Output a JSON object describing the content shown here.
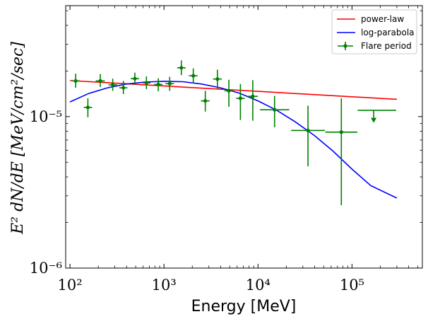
{
  "chart_data": {
    "type": "scatter",
    "title": "",
    "xlabel": "Energy [MeV]",
    "ylabel": "E² dN/dE [MeV/cm²/sec]",
    "xscale": "log",
    "yscale": "log",
    "xlim": [
      90,
      560000
    ],
    "ylim": [
      1e-06,
      5.4e-05
    ],
    "xticks": [
      100,
      1000,
      10000,
      100000
    ],
    "xtick_labels": [
      "10²",
      "10³",
      "10⁴",
      "10⁵"
    ],
    "yticks": [
      1e-06,
      1e-05
    ],
    "ytick_labels": [
      "10⁻⁶",
      "10⁻⁵"
    ],
    "grid": false,
    "legend_position": "top-right",
    "legend": [
      "power-law",
      "log-parabola",
      "Flare period"
    ],
    "colors": {
      "power_law": "#ff0000",
      "log_parabola": "#0000ff",
      "flare": "#008000",
      "frame": "#000000"
    },
    "series": [
      {
        "name": "power-law",
        "kind": "line",
        "x": [
          100,
          300000
        ],
        "y": [
          1.73e-05,
          1.3e-05
        ]
      },
      {
        "name": "log-parabola",
        "kind": "curve",
        "x": [
          100,
          158,
          251,
          398,
          631,
          1000,
          1585,
          2512,
          3981,
          6310,
          10000,
          15849,
          25119,
          39811,
          63096,
          100000,
          158489,
          300000
        ],
        "y": [
          1.25e-05,
          1.42e-05,
          1.55e-05,
          1.64e-05,
          1.69e-05,
          1.71e-05,
          1.7e-05,
          1.64e-05,
          1.55e-05,
          1.43e-05,
          1.27e-05,
          1.1e-05,
          9.2e-06,
          7.5e-06,
          5.9e-06,
          4.5e-06,
          3.5e-06,
          2.9e-06
        ]
      },
      {
        "name": "Flare period",
        "kind": "errorbar",
        "points": [
          {
            "x": 115,
            "xlo": 105,
            "xhi": 127,
            "y": 1.72e-05,
            "ylo": 1.55e-05,
            "yhi": 1.92e-05
          },
          {
            "x": 155,
            "xlo": 140,
            "xhi": 172,
            "y": 1.15e-05,
            "ylo": 9.9e-06,
            "yhi": 1.32e-05
          },
          {
            "x": 210,
            "xlo": 188,
            "xhi": 235,
            "y": 1.72e-05,
            "ylo": 1.57e-05,
            "yhi": 1.91e-05
          },
          {
            "x": 285,
            "xlo": 257,
            "xhi": 316,
            "y": 1.62e-05,
            "ylo": 1.48e-05,
            "yhi": 1.78e-05
          },
          {
            "x": 370,
            "xlo": 335,
            "xhi": 408,
            "y": 1.55e-05,
            "ylo": 1.41e-05,
            "yhi": 1.72e-05
          },
          {
            "x": 490,
            "xlo": 442,
            "xhi": 542,
            "y": 1.78e-05,
            "ylo": 1.62e-05,
            "yhi": 1.95e-05
          },
          {
            "x": 650,
            "xlo": 590,
            "xhi": 718,
            "y": 1.67e-05,
            "ylo": 1.52e-05,
            "yhi": 1.84e-05
          },
          {
            "x": 870,
            "xlo": 785,
            "xhi": 960,
            "y": 1.63e-05,
            "ylo": 1.47e-05,
            "yhi": 1.79e-05
          },
          {
            "x": 1150,
            "xlo": 1035,
            "xhi": 1275,
            "y": 1.65e-05,
            "ylo": 1.48e-05,
            "yhi": 1.83e-05
          },
          {
            "x": 1530,
            "xlo": 1380,
            "xhi": 1700,
            "y": 2.1e-05,
            "ylo": 1.88e-05,
            "yhi": 2.35e-05
          },
          {
            "x": 2050,
            "xlo": 1840,
            "xhi": 2280,
            "y": 1.86e-05,
            "ylo": 1.66e-05,
            "yhi": 2.08e-05
          },
          {
            "x": 2750,
            "xlo": 2470,
            "xhi": 3060,
            "y": 1.27e-05,
            "ylo": 1.08e-05,
            "yhi": 1.48e-05
          },
          {
            "x": 3700,
            "xlo": 3320,
            "xhi": 4120,
            "y": 1.77e-05,
            "ylo": 1.53e-05,
            "yhi": 2.04e-05
          },
          {
            "x": 4900,
            "xlo": 4400,
            "xhi": 5450,
            "y": 1.48e-05,
            "ylo": 1.16e-05,
            "yhi": 1.75e-05
          },
          {
            "x": 6500,
            "xlo": 5850,
            "xhi": 7230,
            "y": 1.32e-05,
            "ylo": 9.5e-06,
            "yhi": 1.64e-05
          },
          {
            "x": 8800,
            "xlo": 7800,
            "xhi": 9950,
            "y": 1.36e-05,
            "ylo": 9.4e-06,
            "yhi": 1.74e-05
          },
          {
            "x": 15000,
            "xlo": 10500,
            "xhi": 21500,
            "y": 1.11e-05,
            "ylo": 8.5e-06,
            "yhi": 1.37e-05
          },
          {
            "x": 34000,
            "xlo": 22500,
            "xhi": 51500,
            "y": 8.1e-06,
            "ylo": 4.7e-06,
            "yhi": 1.18e-05
          },
          {
            "x": 77000,
            "xlo": 52000,
            "xhi": 114000,
            "y": 7.9e-06,
            "ylo": 2.6e-06,
            "yhi": 1.32e-05
          }
        ],
        "upper_limits": [
          {
            "x": 170000,
            "xlo": 115000,
            "xhi": 295000,
            "y": 1.1e-05,
            "arrow_to": 9.3e-06
          }
        ]
      }
    ]
  }
}
